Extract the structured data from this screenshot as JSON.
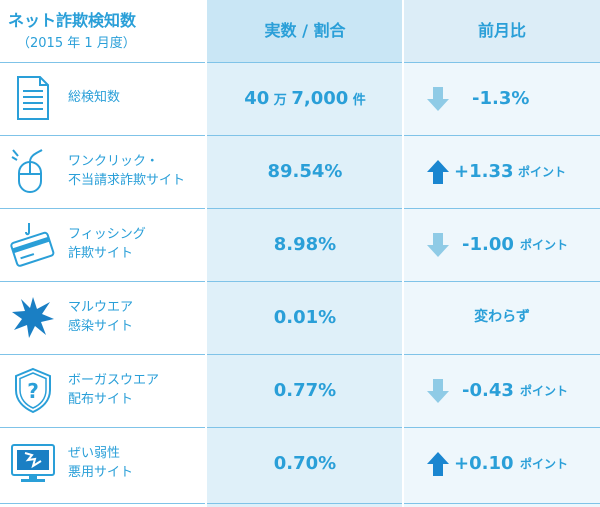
{
  "header": {
    "title": "ネット詐欺検知数",
    "subtitle": "（2015 年 1 月度）",
    "col_value": "実数 / 割合",
    "col_change": "前月比"
  },
  "rows": [
    {
      "icon": "document-icon",
      "label1": "総検知数",
      "label2": "",
      "value_num1": "40",
      "value_unit1": " 万 ",
      "value_num2": "7,000",
      "value_unit2": " 件",
      "direction": "down",
      "change": "-1.3%",
      "change_unit": ""
    },
    {
      "icon": "mouse-icon",
      "label1": "ワンクリック・",
      "label2": "不当請求詐欺サイト",
      "value": "89.54%",
      "direction": "up",
      "change": "+1.33",
      "change_unit": "ポイント"
    },
    {
      "icon": "credit-card-icon",
      "label1": "フィッシング",
      "label2": "詐欺サイト",
      "value": "8.98%",
      "direction": "down",
      "change": "-1.00",
      "change_unit": "ポイント"
    },
    {
      "icon": "malware-splat-icon",
      "label1": "マルウエア",
      "label2": "感染サイト",
      "value": "0.01%",
      "direction": "none",
      "change_text": "変わらず"
    },
    {
      "icon": "shield-question-icon",
      "label1": "ボーガスウエア",
      "label2": "配布サイト",
      "value": "0.77%",
      "direction": "down",
      "change": "-0.43",
      "change_unit": "ポイント"
    },
    {
      "icon": "broken-monitor-icon",
      "label1": "ぜい弱性",
      "label2": "悪用サイト",
      "value": "0.70%",
      "direction": "up",
      "change": "+0.10",
      "change_unit": "ポイント"
    }
  ],
  "colors": {
    "accent": "#2a9fd8",
    "arrow_up": "#1a86d0",
    "arrow_down": "#8fcbe6",
    "rule": "#7fc3e8"
  }
}
